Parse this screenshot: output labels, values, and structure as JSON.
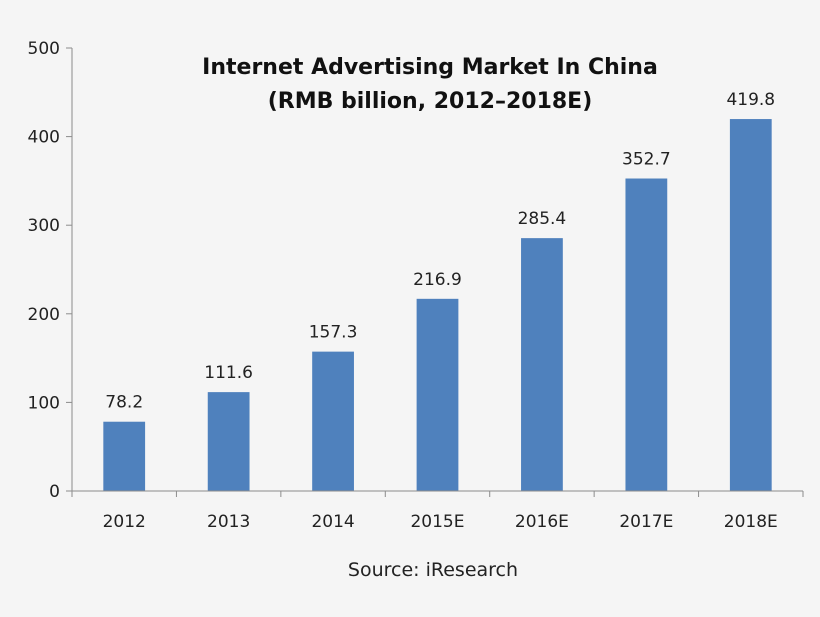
{
  "chart_data": {
    "type": "bar",
    "title": "Internet Advertising Market In China",
    "subtitle": "(RMB billion, 2012–2018E)",
    "categories": [
      "2012",
      "2013",
      "2014",
      "2015E",
      "2016E",
      "2017E",
      "2018E"
    ],
    "values": [
      78.2,
      111.6,
      157.3,
      216.9,
      285.4,
      352.7,
      419.8
    ],
    "data_labels": [
      "78.2",
      "111.6",
      "157.3",
      "216.9",
      "285.4",
      "352.7",
      "419.8"
    ],
    "ylim": [
      0,
      500
    ],
    "yticks": [
      0,
      100,
      200,
      300,
      400,
      500
    ],
    "xlabel": "",
    "ylabel": "",
    "grid": false,
    "legend": "none",
    "bar_color": "#4f81bd",
    "source": "Source: iResearch"
  }
}
